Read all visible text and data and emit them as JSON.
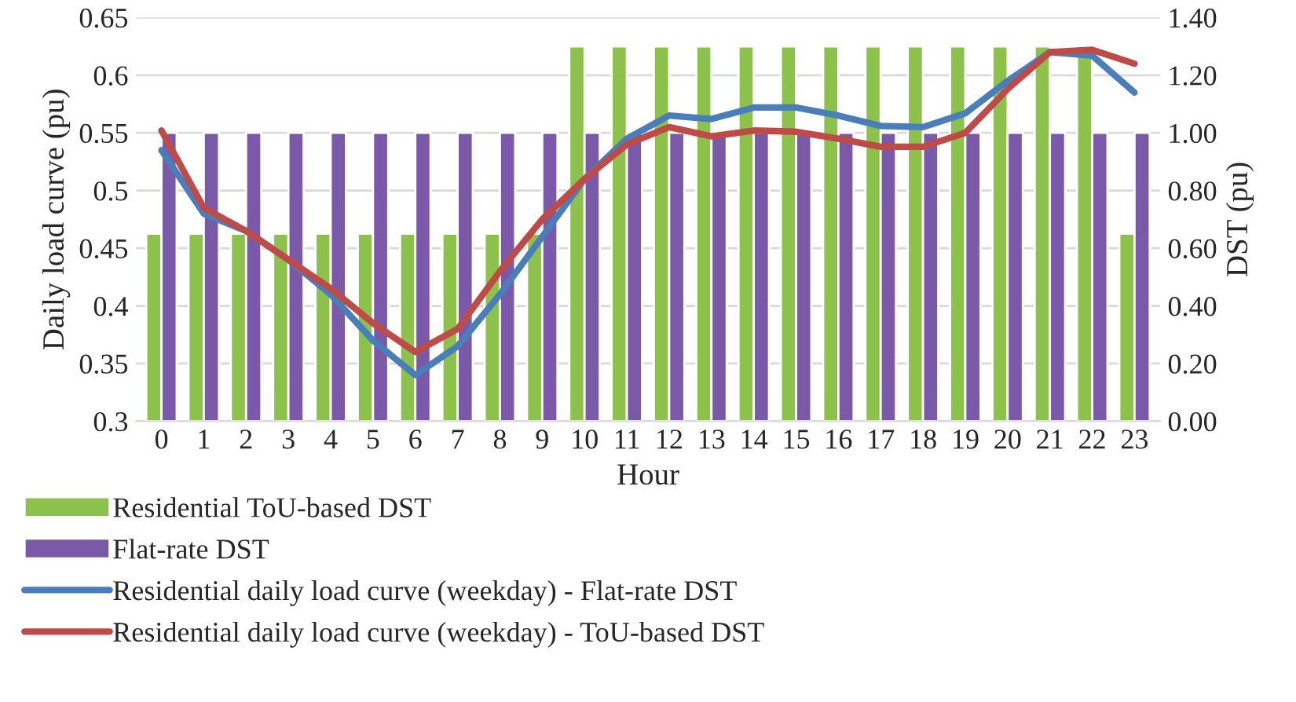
{
  "chart_data": {
    "type": "bar",
    "xlabel": "Hour",
    "ylabel": "Daily load curve (pu)",
    "y2label": "DST (pu)",
    "categories": [
      "0",
      "1",
      "2",
      "3",
      "4",
      "5",
      "6",
      "7",
      "8",
      "9",
      "10",
      "11",
      "12",
      "13",
      "14",
      "15",
      "16",
      "17",
      "18",
      "19",
      "20",
      "21",
      "22",
      "23"
    ],
    "series": [
      {
        "name": "Residential ToU-based DST",
        "axis": "y2",
        "color": "#8cc14c",
        "values": [
          0.65,
          0.65,
          0.65,
          0.65,
          0.65,
          0.65,
          0.65,
          0.65,
          0.65,
          0.65,
          1.3,
          1.3,
          1.3,
          1.3,
          1.3,
          1.3,
          1.3,
          1.3,
          1.3,
          1.3,
          1.3,
          1.3,
          1.3,
          0.65
        ]
      },
      {
        "name": "Flat-rate DST",
        "axis": "y2",
        "color": "#7a5aa8",
        "values": [
          1.0,
          1.0,
          1.0,
          1.0,
          1.0,
          1.0,
          1.0,
          1.0,
          1.0,
          1.0,
          1.0,
          1.0,
          1.0,
          1.0,
          1.0,
          1.0,
          1.0,
          1.0,
          1.0,
          1.0,
          1.0,
          1.0,
          1.0,
          1.0
        ]
      },
      {
        "name": "Residential daily load curve (weekday) - Flat-rate DST",
        "type": "line",
        "color": "#4a7ebb",
        "values": [
          0.535,
          0.48,
          0.465,
          0.44,
          0.41,
          0.37,
          0.34,
          0.365,
          0.41,
          0.46,
          0.51,
          0.545,
          0.565,
          0.562,
          0.572,
          0.572,
          0.565,
          0.556,
          0.555,
          0.567,
          0.595,
          0.62,
          0.617,
          0.585
        ]
      },
      {
        "name": "Residential daily load curve (weekday) - ToU-based DST",
        "type": "line",
        "color": "#be4b48",
        "values": [
          0.552,
          0.485,
          0.465,
          0.44,
          0.415,
          0.385,
          0.36,
          0.38,
          0.43,
          0.475,
          0.51,
          0.54,
          0.555,
          0.547,
          0.552,
          0.551,
          0.545,
          0.538,
          0.538,
          0.55,
          0.588,
          0.62,
          0.622,
          0.61
        ]
      }
    ],
    "ylim": [
      0.3,
      0.65
    ],
    "yticks": [
      0.3,
      0.35,
      0.4,
      0.45,
      0.5,
      0.55,
      0.6,
      0.65
    ],
    "y2lim": [
      0,
      1.4
    ],
    "y2ticks": [
      {
        "value": 0,
        "label": "0.00"
      },
      {
        "value": 0.2,
        "label": "0.20"
      },
      {
        "value": 0.4,
        "label": "0.40"
      },
      {
        "value": 0.6,
        "label": "0.60"
      },
      {
        "value": 0.8,
        "label": "0.80"
      },
      {
        "value": 1.0,
        "label": "1.00"
      },
      {
        "value": 1.2,
        "label": "1.20"
      },
      {
        "value": 1.4,
        "label": "1.40"
      }
    ],
    "grid": "y",
    "legend": "bottom",
    "marker": "none",
    "line_style": "solid"
  }
}
